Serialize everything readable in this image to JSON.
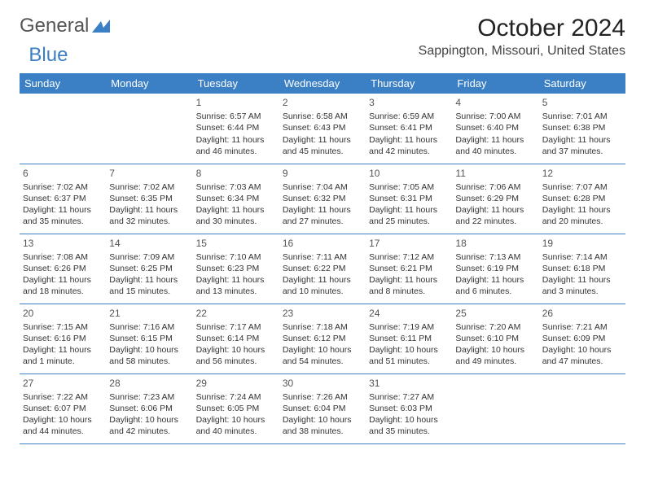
{
  "logo": {
    "part1": "General",
    "part2": "Blue"
  },
  "header": {
    "month_title": "October 2024",
    "location": "Sappington, Missouri, United States"
  },
  "colors": {
    "header_bg": "#3b7fc4",
    "header_text": "#ffffff",
    "row_divider": "#3b7fc4",
    "body_text": "#333333",
    "title_text": "#222222"
  },
  "weekdays": [
    "Sunday",
    "Monday",
    "Tuesday",
    "Wednesday",
    "Thursday",
    "Friday",
    "Saturday"
  ],
  "weeks": [
    [
      null,
      null,
      {
        "n": "1",
        "sunrise": "6:57 AM",
        "sunset": "6:44 PM",
        "daylight": "11 hours and 46 minutes."
      },
      {
        "n": "2",
        "sunrise": "6:58 AM",
        "sunset": "6:43 PM",
        "daylight": "11 hours and 45 minutes."
      },
      {
        "n": "3",
        "sunrise": "6:59 AM",
        "sunset": "6:41 PM",
        "daylight": "11 hours and 42 minutes."
      },
      {
        "n": "4",
        "sunrise": "7:00 AM",
        "sunset": "6:40 PM",
        "daylight": "11 hours and 40 minutes."
      },
      {
        "n": "5",
        "sunrise": "7:01 AM",
        "sunset": "6:38 PM",
        "daylight": "11 hours and 37 minutes."
      }
    ],
    [
      {
        "n": "6",
        "sunrise": "7:02 AM",
        "sunset": "6:37 PM",
        "daylight": "11 hours and 35 minutes."
      },
      {
        "n": "7",
        "sunrise": "7:02 AM",
        "sunset": "6:35 PM",
        "daylight": "11 hours and 32 minutes."
      },
      {
        "n": "8",
        "sunrise": "7:03 AM",
        "sunset": "6:34 PM",
        "daylight": "11 hours and 30 minutes."
      },
      {
        "n": "9",
        "sunrise": "7:04 AM",
        "sunset": "6:32 PM",
        "daylight": "11 hours and 27 minutes."
      },
      {
        "n": "10",
        "sunrise": "7:05 AM",
        "sunset": "6:31 PM",
        "daylight": "11 hours and 25 minutes."
      },
      {
        "n": "11",
        "sunrise": "7:06 AM",
        "sunset": "6:29 PM",
        "daylight": "11 hours and 22 minutes."
      },
      {
        "n": "12",
        "sunrise": "7:07 AM",
        "sunset": "6:28 PM",
        "daylight": "11 hours and 20 minutes."
      }
    ],
    [
      {
        "n": "13",
        "sunrise": "7:08 AM",
        "sunset": "6:26 PM",
        "daylight": "11 hours and 18 minutes."
      },
      {
        "n": "14",
        "sunrise": "7:09 AM",
        "sunset": "6:25 PM",
        "daylight": "11 hours and 15 minutes."
      },
      {
        "n": "15",
        "sunrise": "7:10 AM",
        "sunset": "6:23 PM",
        "daylight": "11 hours and 13 minutes."
      },
      {
        "n": "16",
        "sunrise": "7:11 AM",
        "sunset": "6:22 PM",
        "daylight": "11 hours and 10 minutes."
      },
      {
        "n": "17",
        "sunrise": "7:12 AM",
        "sunset": "6:21 PM",
        "daylight": "11 hours and 8 minutes."
      },
      {
        "n": "18",
        "sunrise": "7:13 AM",
        "sunset": "6:19 PM",
        "daylight": "11 hours and 6 minutes."
      },
      {
        "n": "19",
        "sunrise": "7:14 AM",
        "sunset": "6:18 PM",
        "daylight": "11 hours and 3 minutes."
      }
    ],
    [
      {
        "n": "20",
        "sunrise": "7:15 AM",
        "sunset": "6:16 PM",
        "daylight": "11 hours and 1 minute."
      },
      {
        "n": "21",
        "sunrise": "7:16 AM",
        "sunset": "6:15 PM",
        "daylight": "10 hours and 58 minutes."
      },
      {
        "n": "22",
        "sunrise": "7:17 AM",
        "sunset": "6:14 PM",
        "daylight": "10 hours and 56 minutes."
      },
      {
        "n": "23",
        "sunrise": "7:18 AM",
        "sunset": "6:12 PM",
        "daylight": "10 hours and 54 minutes."
      },
      {
        "n": "24",
        "sunrise": "7:19 AM",
        "sunset": "6:11 PM",
        "daylight": "10 hours and 51 minutes."
      },
      {
        "n": "25",
        "sunrise": "7:20 AM",
        "sunset": "6:10 PM",
        "daylight": "10 hours and 49 minutes."
      },
      {
        "n": "26",
        "sunrise": "7:21 AM",
        "sunset": "6:09 PM",
        "daylight": "10 hours and 47 minutes."
      }
    ],
    [
      {
        "n": "27",
        "sunrise": "7:22 AM",
        "sunset": "6:07 PM",
        "daylight": "10 hours and 44 minutes."
      },
      {
        "n": "28",
        "sunrise": "7:23 AM",
        "sunset": "6:06 PM",
        "daylight": "10 hours and 42 minutes."
      },
      {
        "n": "29",
        "sunrise": "7:24 AM",
        "sunset": "6:05 PM",
        "daylight": "10 hours and 40 minutes."
      },
      {
        "n": "30",
        "sunrise": "7:26 AM",
        "sunset": "6:04 PM",
        "daylight": "10 hours and 38 minutes."
      },
      {
        "n": "31",
        "sunrise": "7:27 AM",
        "sunset": "6:03 PM",
        "daylight": "10 hours and 35 minutes."
      },
      null,
      null
    ]
  ],
  "labels": {
    "sunrise": "Sunrise:",
    "sunset": "Sunset:",
    "daylight": "Daylight:"
  }
}
